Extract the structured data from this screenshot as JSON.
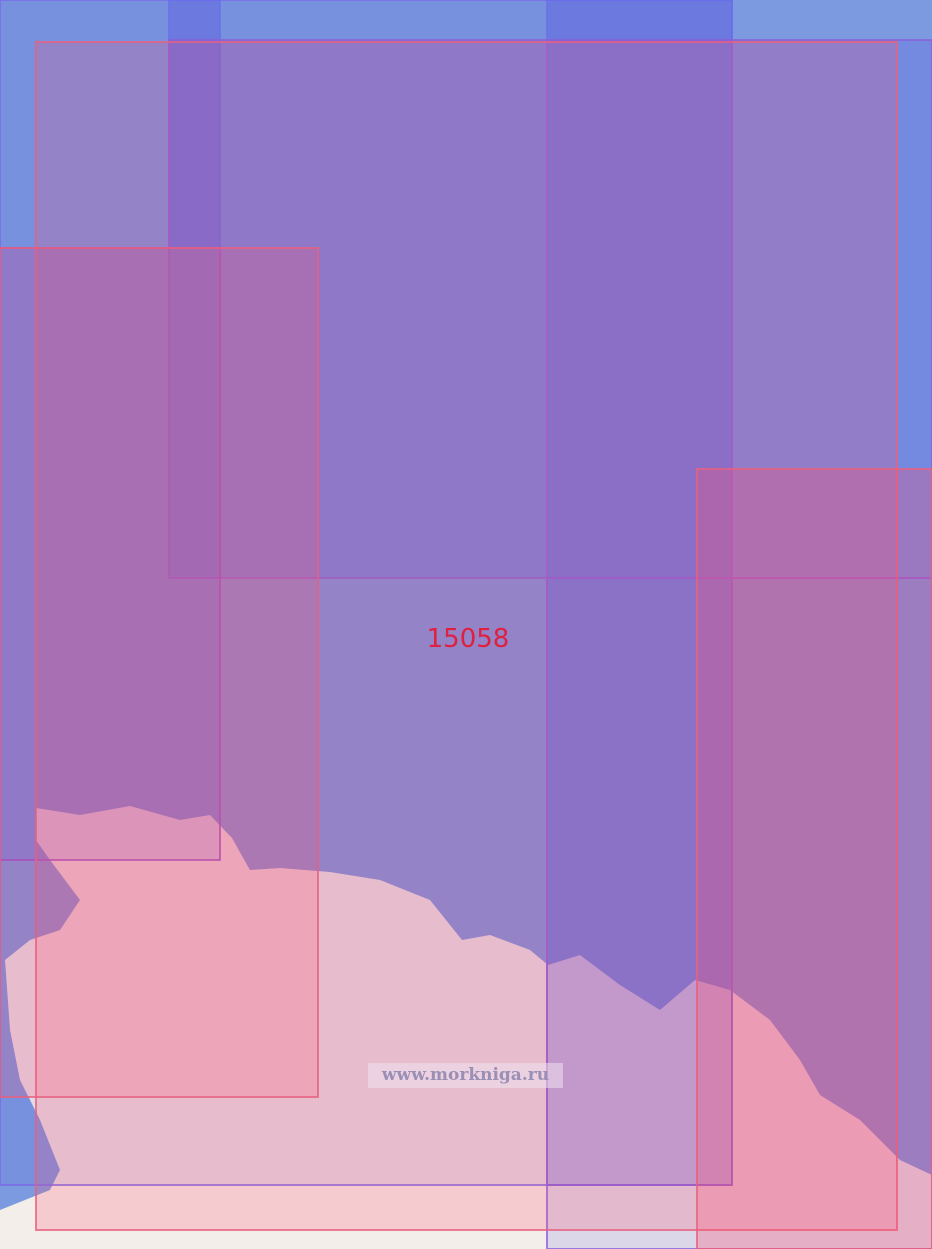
{
  "map": {
    "chart_label": "15058",
    "watermark": "www.morkniga.ru",
    "colors": {
      "sea": "#7b9ae0",
      "land": "#f3eeea",
      "pink_coverage": "#ff5070",
      "blue_coverage": "#5a50e0",
      "label": "#e0203f"
    }
  }
}
